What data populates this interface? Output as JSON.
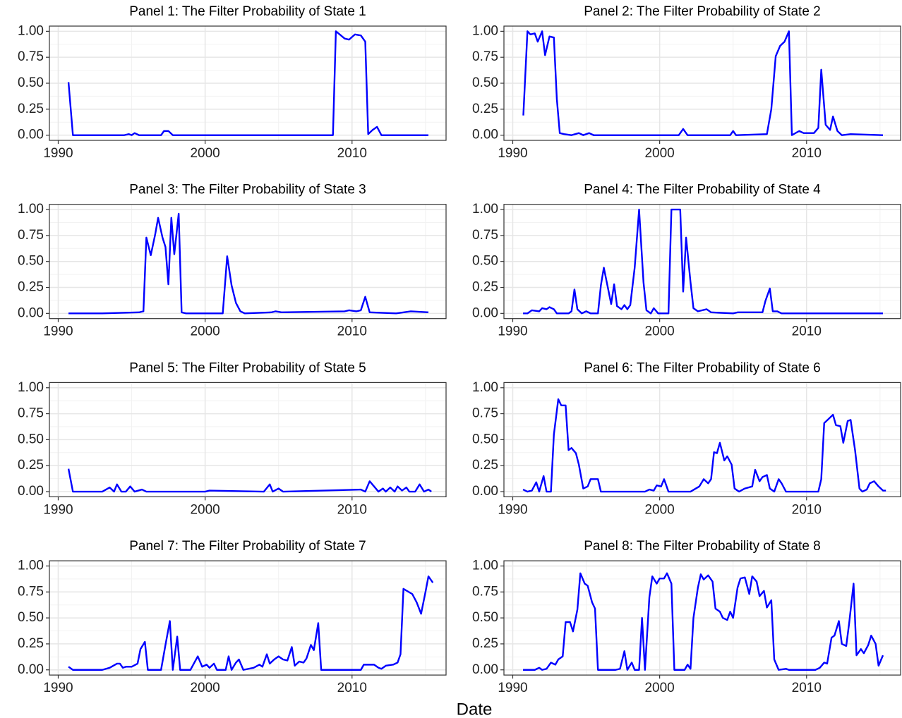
{
  "xlabel": "Date",
  "chart_data": [
    {
      "type": "line",
      "title": "Panel 1: The Filter Probability of State 1",
      "color": "#0000ff",
      "grid": true,
      "xlim": [
        1989.4,
        2016.4
      ],
      "ylim": [
        -0.05,
        1.05
      ],
      "xticks": [
        1990,
        2000,
        2010
      ],
      "xminor": [
        1995,
        2005,
        2015
      ],
      "yticks": [
        {
          "value": 0,
          "label": "0.00"
        },
        {
          "value": 0.25,
          "label": "0.25"
        },
        {
          "value": 0.5,
          "label": "0.50"
        },
        {
          "value": 0.75,
          "label": "0.75"
        },
        {
          "value": 1,
          "label": "1.00"
        }
      ],
      "yminor": [
        0.125,
        0.375,
        0.625,
        0.875
      ],
      "x": [
        1990.7,
        1991,
        1994.5,
        1994.8,
        1995,
        1995.2,
        1995.5,
        1997,
        1997.2,
        1997.5,
        1997.8,
        2008.7,
        2008.9,
        2009.5,
        2009.8,
        2010.2,
        2010.6,
        2010.9,
        2011.1,
        2011.4,
        2011.7,
        2012,
        2015.2
      ],
      "values": [
        0.51,
        0,
        0,
        0.01,
        0,
        0.02,
        0,
        0,
        0.04,
        0.04,
        0,
        0,
        1.0,
        0.93,
        0.92,
        0.97,
        0.96,
        0.9,
        0.01,
        0.05,
        0.08,
        0,
        0
      ]
    },
    {
      "type": "line",
      "title": "Panel 2: The Filter Probability of State 2",
      "color": "#0000ff",
      "grid": true,
      "xlim": [
        1989.4,
        2016.4
      ],
      "ylim": [
        -0.05,
        1.05
      ],
      "xticks": [
        1990,
        2000,
        2010
      ],
      "xminor": [
        1995,
        2005,
        2015
      ],
      "yticks": [
        {
          "value": 0,
          "label": "0.00"
        },
        {
          "value": 0.25,
          "label": "0.25"
        },
        {
          "value": 0.5,
          "label": "0.50"
        },
        {
          "value": 0.75,
          "label": "0.75"
        },
        {
          "value": 1,
          "label": "1.00"
        }
      ],
      "yminor": [
        0.125,
        0.375,
        0.625,
        0.875
      ],
      "x": [
        1990.72,
        1991,
        1991.2,
        1991.5,
        1991.7,
        1992,
        1992.2,
        1992.5,
        1992.8,
        1993,
        1993.2,
        1993.5,
        1994,
        1994.5,
        1994.8,
        1995.2,
        1995.5,
        2001.3,
        2001.6,
        2001.9,
        2004.8,
        2005,
        2005.2,
        2007.3,
        2007.6,
        2007.9,
        2008.2,
        2008.5,
        2008.8,
        2009,
        2009.5,
        2009.8,
        2010.5,
        2010.8,
        2011,
        2011.3,
        2011.6,
        2011.8,
        2012.1,
        2012.4,
        2013,
        2015.2
      ],
      "values": [
        0.19,
        1.0,
        0.97,
        0.98,
        0.9,
        1.0,
        0.77,
        0.95,
        0.94,
        0.35,
        0.02,
        0.01,
        0,
        0.02,
        0,
        0.02,
        0,
        0,
        0.06,
        0,
        0,
        0.04,
        0,
        0.01,
        0.25,
        0.76,
        0.86,
        0.9,
        1.0,
        0,
        0.04,
        0.02,
        0.02,
        0.07,
        0.63,
        0.1,
        0.05,
        0.18,
        0.04,
        0,
        0.01,
        0
      ]
    },
    {
      "type": "line",
      "title": "Panel 3: The Filter Probability of State 3",
      "color": "#0000ff",
      "grid": true,
      "xlim": [
        1989.4,
        2016.4
      ],
      "ylim": [
        -0.05,
        1.05
      ],
      "xticks": [
        1990,
        2000,
        2010
      ],
      "xminor": [
        1995,
        2005,
        2015
      ],
      "yticks": [
        {
          "value": 0,
          "label": "0.00"
        },
        {
          "value": 0.25,
          "label": "0.25"
        },
        {
          "value": 0.5,
          "label": "0.50"
        },
        {
          "value": 0.75,
          "label": "0.75"
        },
        {
          "value": 1,
          "label": "1.00"
        }
      ],
      "yminor": [
        0.125,
        0.375,
        0.625,
        0.875
      ],
      "x": [
        1990.7,
        1993,
        1995.5,
        1995.8,
        1996,
        1996.3,
        1996.6,
        1996.8,
        1997.1,
        1997.3,
        1997.5,
        1997.7,
        1997.9,
        1998.2,
        1998.4,
        1998.7,
        2001.2,
        2001.5,
        2001.8,
        2002.1,
        2002.4,
        2002.7,
        2004.5,
        2004.8,
        2005.2,
        2009.5,
        2009.8,
        2010.3,
        2010.6,
        2010.9,
        2011.2,
        2013,
        2014,
        2015.2
      ],
      "values": [
        0,
        0,
        0.01,
        0.02,
        0.73,
        0.56,
        0.76,
        0.92,
        0.73,
        0.64,
        0.28,
        0.92,
        0.57,
        0.96,
        0.01,
        0,
        0,
        0.55,
        0.27,
        0.1,
        0.02,
        0,
        0.01,
        0.02,
        0.01,
        0.02,
        0.03,
        0.02,
        0.03,
        0.16,
        0.01,
        0,
        0.02,
        0.01
      ]
    },
    {
      "type": "line",
      "title": "Panel 4: The Filter Probability of State 4",
      "color": "#0000ff",
      "grid": true,
      "xlim": [
        1989.4,
        2016.4
      ],
      "ylim": [
        -0.05,
        1.05
      ],
      "xticks": [
        1990,
        2000,
        2010
      ],
      "xminor": [
        1995,
        2005,
        2015
      ],
      "yticks": [
        {
          "value": 0,
          "label": "0.00"
        },
        {
          "value": 0.25,
          "label": "0.25"
        },
        {
          "value": 0.5,
          "label": "0.50"
        },
        {
          "value": 0.75,
          "label": "0.75"
        },
        {
          "value": 1,
          "label": "1.00"
        }
      ],
      "yminor": [
        0.125,
        0.375,
        0.625,
        0.875
      ],
      "x": [
        1990.7,
        1991,
        1991.3,
        1991.8,
        1992,
        1992.3,
        1992.5,
        1992.8,
        1993,
        1993.8,
        1994,
        1994.2,
        1994.4,
        1994.7,
        1995,
        1995.3,
        1995.8,
        1996,
        1996.2,
        1996.5,
        1996.7,
        1996.9,
        1997.1,
        1997.4,
        1997.6,
        1997.8,
        1998,
        1998.3,
        1998.6,
        1998.9,
        1999.1,
        1999.4,
        1999.6,
        1999.9,
        2000.6,
        2000.8,
        2001.4,
        2001.6,
        2001.8,
        2002.1,
        2002.3,
        2002.6,
        2003.2,
        2003.5,
        2005,
        2005.3,
        2007,
        2007.2,
        2007.5,
        2007.7,
        2008,
        2008.3,
        2015.2
      ],
      "values": [
        0,
        0,
        0.03,
        0.02,
        0.05,
        0.04,
        0.06,
        0.04,
        0,
        0,
        0.02,
        0.23,
        0.04,
        0,
        0.02,
        0,
        0,
        0.27,
        0.44,
        0.23,
        0.09,
        0.28,
        0.07,
        0.04,
        0.08,
        0.04,
        0.08,
        0.44,
        1.0,
        0.3,
        0.03,
        0,
        0.05,
        0,
        0,
        1.0,
        1.0,
        0.21,
        0.73,
        0.3,
        0.05,
        0.02,
        0.04,
        0.01,
        0,
        0.01,
        0.01,
        0.12,
        0.24,
        0.02,
        0.02,
        0,
        0
      ]
    },
    {
      "type": "line",
      "title": "Panel 5: The Filter Probability of State 5",
      "color": "#0000ff",
      "grid": true,
      "xlim": [
        1989.4,
        2016.4
      ],
      "ylim": [
        -0.05,
        1.05
      ],
      "xticks": [
        1990,
        2000,
        2010
      ],
      "xminor": [
        1995,
        2005,
        2015
      ],
      "yticks": [
        {
          "value": 0,
          "label": "0.00"
        },
        {
          "value": 0.25,
          "label": "0.25"
        },
        {
          "value": 0.5,
          "label": "0.50"
        },
        {
          "value": 0.75,
          "label": "0.75"
        },
        {
          "value": 1,
          "label": "1.00"
        }
      ],
      "yminor": [
        0.125,
        0.375,
        0.625,
        0.875
      ],
      "x": [
        1990.7,
        1991,
        1993,
        1993.5,
        1993.8,
        1994,
        1994.3,
        1994.6,
        1994.9,
        1995.2,
        1995.7,
        1996,
        2000,
        2000.3,
        2004,
        2004.4,
        2004.6,
        2005,
        2005.3,
        2010.6,
        2010.9,
        2011.2,
        2011.5,
        2011.8,
        2012.1,
        2012.3,
        2012.6,
        2012.9,
        2013.1,
        2013.4,
        2013.7,
        2013.9,
        2014.3,
        2014.6,
        2014.9,
        2015.2,
        2015.4
      ],
      "values": [
        0.22,
        0,
        0,
        0.04,
        0,
        0.07,
        0,
        0,
        0.05,
        0,
        0.02,
        0,
        0,
        0.01,
        0,
        0.07,
        0,
        0.03,
        0,
        0.02,
        0,
        0.1,
        0.05,
        0,
        0.03,
        0,
        0.04,
        0,
        0.05,
        0.01,
        0.04,
        0,
        0,
        0.07,
        0,
        0.02,
        0
      ]
    },
    {
      "type": "line",
      "title": "Panel 6: The Filter Probability of State 6",
      "color": "#0000ff",
      "grid": true,
      "xlim": [
        1989.4,
        2016.4
      ],
      "ylim": [
        -0.05,
        1.05
      ],
      "xticks": [
        1990,
        2000,
        2010
      ],
      "xminor": [
        1995,
        2005,
        2015
      ],
      "yticks": [
        {
          "value": 0,
          "label": "0.00"
        },
        {
          "value": 0.25,
          "label": "0.25"
        },
        {
          "value": 0.5,
          "label": "0.50"
        },
        {
          "value": 0.75,
          "label": "0.75"
        },
        {
          "value": 1,
          "label": "1.00"
        }
      ],
      "yminor": [
        0.125,
        0.375,
        0.625,
        0.875
      ],
      "x": [
        1990.7,
        1991,
        1991.3,
        1991.6,
        1991.8,
        1992.1,
        1992.3,
        1992.6,
        1992.8,
        1993.1,
        1993.3,
        1993.6,
        1993.8,
        1994,
        1994.3,
        1994.5,
        1994.8,
        1995.1,
        1995.3,
        1995.8,
        1996,
        1999,
        1999.3,
        1999.6,
        1999.8,
        2000.1,
        2000.3,
        2000.6,
        2002.1,
        2002.7,
        2003,
        2003.3,
        2003.5,
        2003.7,
        2003.9,
        2004.1,
        2004.4,
        2004.6,
        2004.9,
        2005.1,
        2005.4,
        2005.8,
        2006.3,
        2006.5,
        2006.8,
        2007,
        2007.3,
        2007.5,
        2007.8,
        2008.1,
        2008.3,
        2008.6,
        2010.8,
        2011,
        2011.2,
        2011.5,
        2011.8,
        2012,
        2012.3,
        2012.5,
        2012.8,
        2013,
        2013.3,
        2013.6,
        2013.8,
        2014.1,
        2014.3,
        2014.6,
        2014.9,
        2015.2,
        2015.4
      ],
      "values": [
        0.02,
        0,
        0.01,
        0.09,
        0,
        0.15,
        0,
        0,
        0.55,
        0.89,
        0.83,
        0.83,
        0.4,
        0.42,
        0.37,
        0.26,
        0.03,
        0.05,
        0.12,
        0.12,
        0,
        0,
        0.02,
        0.01,
        0.06,
        0.05,
        0.12,
        0,
        0,
        0.05,
        0.12,
        0.08,
        0.12,
        0.38,
        0.37,
        0.47,
        0.3,
        0.34,
        0.26,
        0.03,
        0,
        0.03,
        0.05,
        0.21,
        0.1,
        0.14,
        0.16,
        0.03,
        0,
        0.12,
        0.08,
        0,
        0,
        0.12,
        0.66,
        0.7,
        0.74,
        0.64,
        0.63,
        0.47,
        0.68,
        0.69,
        0.4,
        0.03,
        0,
        0.02,
        0.08,
        0.1,
        0.05,
        0.01,
        0.01
      ]
    },
    {
      "type": "line",
      "title": "Panel 7: The Filter Probability of State 7",
      "color": "#0000ff",
      "grid": true,
      "xlim": [
        1989.4,
        2016.4
      ],
      "ylim": [
        -0.05,
        1.05
      ],
      "xticks": [
        1990,
        2000,
        2010
      ],
      "xminor": [
        1995,
        2005,
        2015
      ],
      "yticks": [
        {
          "value": 0,
          "label": "0.00"
        },
        {
          "value": 0.25,
          "label": "0.25"
        },
        {
          "value": 0.5,
          "label": "0.50"
        },
        {
          "value": 0.75,
          "label": "0.75"
        },
        {
          "value": 1,
          "label": "1.00"
        }
      ],
      "yminor": [
        0.125,
        0.375,
        0.625,
        0.875
      ],
      "x": [
        1990.7,
        1991,
        1993,
        1993.5,
        1994,
        1994.2,
        1994.4,
        1994.6,
        1995,
        1995.4,
        1995.6,
        1995.9,
        1996.1,
        1997,
        1997.3,
        1997.6,
        1997.8,
        1998.1,
        1998.3,
        1999,
        1999.5,
        1999.8,
        2000.1,
        2000.3,
        2000.6,
        2000.8,
        2001.4,
        2001.6,
        2001.8,
        2002.1,
        2002.3,
        2002.6,
        2003.3,
        2003.7,
        2003.9,
        2004.2,
        2004.4,
        2004.7,
        2005,
        2005.3,
        2005.6,
        2005.9,
        2006.1,
        2006.4,
        2006.7,
        2006.9,
        2007.2,
        2007.4,
        2007.7,
        2007.9,
        2009,
        2010.6,
        2010.8,
        2011.5,
        2011.8,
        2012,
        2012.3,
        2012.8,
        2013.1,
        2013.3,
        2013.5,
        2014.1,
        2014.4,
        2014.7,
        2015,
        2015.2,
        2015.5
      ],
      "values": [
        0.03,
        0,
        0,
        0.02,
        0.06,
        0.06,
        0.02,
        0.03,
        0.03,
        0.06,
        0.2,
        0.27,
        0,
        0,
        0.24,
        0.47,
        0,
        0.32,
        0,
        0,
        0.13,
        0.03,
        0.05,
        0.02,
        0.06,
        0,
        0,
        0.13,
        0,
        0.07,
        0.1,
        0,
        0.02,
        0.05,
        0.03,
        0.15,
        0.06,
        0.1,
        0.13,
        0.1,
        0.09,
        0.22,
        0.04,
        0.08,
        0.07,
        0.11,
        0.24,
        0.19,
        0.45,
        0,
        0,
        0,
        0.05,
        0.05,
        0.02,
        0.01,
        0.04,
        0.05,
        0.07,
        0.15,
        0.78,
        0.73,
        0.65,
        0.54,
        0.75,
        0.9,
        0.84
      ]
    },
    {
      "type": "line",
      "title": "Panel 8: The Filter Probability of State 8",
      "color": "#0000ff",
      "grid": true,
      "xlim": [
        1989.4,
        2016.4
      ],
      "ylim": [
        -0.05,
        1.05
      ],
      "xticks": [
        1990,
        2000,
        2010
      ],
      "xminor": [
        1995,
        2005,
        2015
      ],
      "yticks": [
        {
          "value": 0,
          "label": "0.00"
        },
        {
          "value": 0.25,
          "label": "0.25"
        },
        {
          "value": 0.5,
          "label": "0.50"
        },
        {
          "value": 0.75,
          "label": "0.75"
        },
        {
          "value": 1,
          "label": "1.00"
        }
      ],
      "yminor": [
        0.125,
        0.375,
        0.625,
        0.875
      ],
      "x": [
        1990.7,
        1991.5,
        1991.8,
        1992,
        1992.3,
        1992.6,
        1992.9,
        1993.1,
        1993.4,
        1993.6,
        1993.9,
        1994.1,
        1994.4,
        1994.6,
        1994.9,
        1995.1,
        1995.4,
        1995.6,
        1995.8,
        1997,
        1997.3,
        1997.6,
        1997.8,
        1998.1,
        1998.3,
        1998.6,
        1998.8,
        1999,
        1999.3,
        1999.5,
        1999.8,
        2000,
        2000.3,
        2000.5,
        2000.8,
        2001,
        2001.7,
        2001.9,
        2002.1,
        2002.3,
        2002.6,
        2002.8,
        2003,
        2003.3,
        2003.6,
        2003.8,
        2004.1,
        2004.3,
        2004.6,
        2004.8,
        2005,
        2005.3,
        2005.5,
        2005.8,
        2006.1,
        2006.3,
        2006.6,
        2006.8,
        2007.1,
        2007.3,
        2007.6,
        2007.8,
        2008.1,
        2008.6,
        2008.8,
        2010.6,
        2010.9,
        2011.2,
        2011.4,
        2011.7,
        2011.9,
        2012.2,
        2012.4,
        2012.7,
        2012.9,
        2013.2,
        2013.4,
        2013.7,
        2013.9,
        2014.2,
        2014.4,
        2014.7,
        2014.9,
        2015.2
      ],
      "values": [
        0,
        0,
        0.02,
        0,
        0.01,
        0.07,
        0.05,
        0.1,
        0.13,
        0.46,
        0.46,
        0.37,
        0.58,
        0.93,
        0.83,
        0.81,
        0.65,
        0.59,
        0,
        0,
        0.01,
        0.18,
        0,
        0.07,
        0,
        0,
        0.5,
        0,
        0.7,
        0.9,
        0.83,
        0.88,
        0.88,
        0.93,
        0.83,
        0,
        0,
        0.05,
        0.01,
        0.5,
        0.79,
        0.92,
        0.87,
        0.91,
        0.85,
        0.59,
        0.56,
        0.5,
        0.48,
        0.56,
        0.5,
        0.79,
        0.88,
        0.89,
        0.73,
        0.9,
        0.85,
        0.71,
        0.76,
        0.6,
        0.67,
        0.1,
        0,
        0.01,
        0,
        0,
        0.02,
        0.07,
        0.06,
        0.31,
        0.33,
        0.47,
        0.25,
        0.23,
        0.45,
        0.83,
        0.14,
        0.2,
        0.16,
        0.24,
        0.33,
        0.25,
        0.04,
        0.14
      ]
    }
  ]
}
